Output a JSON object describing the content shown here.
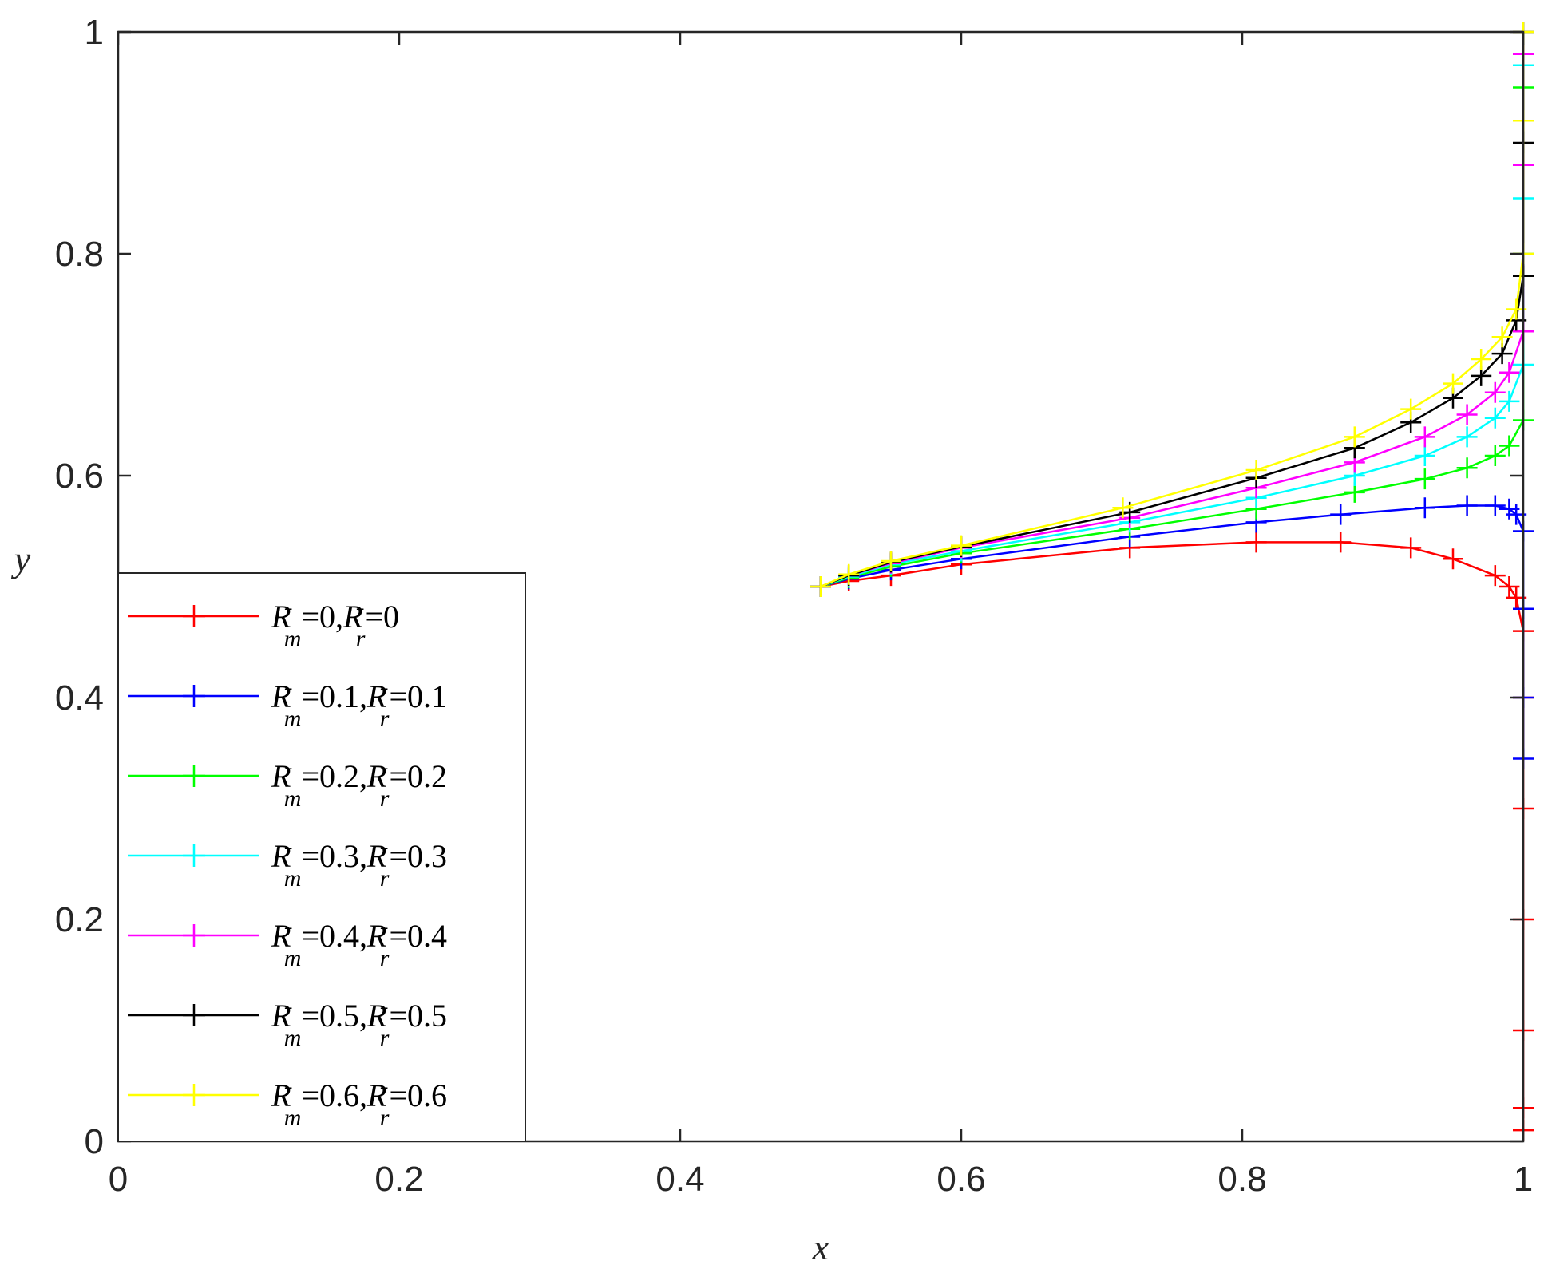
{
  "chart_data": {
    "type": "line",
    "title": "",
    "xlabel": "x",
    "ylabel": "y",
    "xlim": [
      0,
      1
    ],
    "ylim": [
      0,
      1
    ],
    "xticks": [
      "0",
      "0.2",
      "0.4",
      "0.6",
      "0.8",
      "1"
    ],
    "yticks": [
      "0",
      "0.2",
      "0.4",
      "0.6",
      "0.8",
      "1"
    ],
    "grid": false,
    "legend_position": "bottom-left",
    "marker": "plus",
    "series": [
      {
        "name": "Rm=0,Rr=0",
        "legend_parts": [
          "0",
          "0"
        ],
        "color": "#ff0000",
        "x": [
          0.5,
          0.52,
          0.55,
          0.6,
          0.72,
          0.81,
          0.87,
          0.92,
          0.95,
          0.98,
          0.99,
          0.995,
          1.0,
          1.0,
          1.0,
          1.0,
          1.0,
          1.0,
          1.0
        ],
        "y": [
          0.5,
          0.505,
          0.51,
          0.52,
          0.535,
          0.54,
          0.54,
          0.535,
          0.525,
          0.51,
          0.5,
          0.49,
          0.46,
          0.4,
          0.3,
          0.2,
          0.1,
          0.03,
          0.01
        ]
      },
      {
        "name": "Rm=0.1,Rr=0.1",
        "legend_parts": [
          "0.1",
          "0.1"
        ],
        "color": "#0000ff",
        "x": [
          0.5,
          0.52,
          0.55,
          0.6,
          0.72,
          0.81,
          0.87,
          0.93,
          0.96,
          0.98,
          0.99,
          0.995,
          1.0,
          1.0,
          1.0,
          1.0
        ],
        "y": [
          0.5,
          0.507,
          0.515,
          0.525,
          0.545,
          0.558,
          0.565,
          0.571,
          0.573,
          0.573,
          0.57,
          0.565,
          0.55,
          0.48,
          0.4,
          0.345
        ]
      },
      {
        "name": "Rm=0.2,Rr=0.2",
        "legend_parts": [
          "0.2",
          "0.2"
        ],
        "color": "#00ff00",
        "x": [
          0.5,
          0.52,
          0.55,
          0.6,
          0.72,
          0.81,
          0.88,
          0.93,
          0.96,
          0.98,
          0.99,
          1.0,
          1.0,
          1.0
        ],
        "y": [
          0.5,
          0.508,
          0.518,
          0.53,
          0.552,
          0.57,
          0.585,
          0.597,
          0.607,
          0.618,
          0.627,
          0.65,
          0.8,
          0.95
        ]
      },
      {
        "name": "Rm=0.3,Rr=0.3",
        "legend_parts": [
          "0.3",
          "0.3"
        ],
        "color": "#00ffff",
        "x": [
          0.5,
          0.52,
          0.55,
          0.6,
          0.72,
          0.81,
          0.88,
          0.93,
          0.96,
          0.98,
          0.99,
          1.0,
          1.0,
          1.0
        ],
        "y": [
          0.5,
          0.509,
          0.52,
          0.532,
          0.558,
          0.58,
          0.6,
          0.618,
          0.635,
          0.652,
          0.667,
          0.7,
          0.85,
          0.97
        ]
      },
      {
        "name": "Rm=0.4,Rr=0.4",
        "legend_parts": [
          "0.4",
          "0.4"
        ],
        "color": "#ff00ff",
        "x": [
          0.5,
          0.52,
          0.55,
          0.6,
          0.72,
          0.81,
          0.88,
          0.93,
          0.96,
          0.98,
          0.99,
          1.0,
          1.0,
          1.0
        ],
        "y": [
          0.5,
          0.51,
          0.521,
          0.535,
          0.562,
          0.589,
          0.612,
          0.635,
          0.655,
          0.675,
          0.693,
          0.73,
          0.88,
          0.98
        ]
      },
      {
        "name": "Rm=0.5,Rr=0.5",
        "legend_parts": [
          "0.5",
          "0.5"
        ],
        "color": "#000000",
        "x": [
          0.5,
          0.52,
          0.55,
          0.6,
          0.72,
          0.81,
          0.88,
          0.92,
          0.95,
          0.97,
          0.985,
          0.995,
          1.0,
          1.0,
          1.0
        ],
        "y": [
          0.5,
          0.51,
          0.522,
          0.536,
          0.567,
          0.598,
          0.625,
          0.648,
          0.67,
          0.69,
          0.71,
          0.74,
          0.78,
          0.9,
          1.0
        ]
      },
      {
        "name": "Rm=0.6,Rr=0.6",
        "legend_parts": [
          "0.6",
          "0.6"
        ],
        "color": "#ffff00",
        "x": [
          0.5,
          0.52,
          0.55,
          0.6,
          0.715,
          0.81,
          0.88,
          0.92,
          0.95,
          0.97,
          0.985,
          0.995,
          1.0,
          1.0,
          1.0
        ],
        "y": [
          0.5,
          0.511,
          0.523,
          0.537,
          0.571,
          0.605,
          0.635,
          0.66,
          0.683,
          0.705,
          0.725,
          0.75,
          0.8,
          0.92,
          1.0
        ]
      }
    ]
  }
}
